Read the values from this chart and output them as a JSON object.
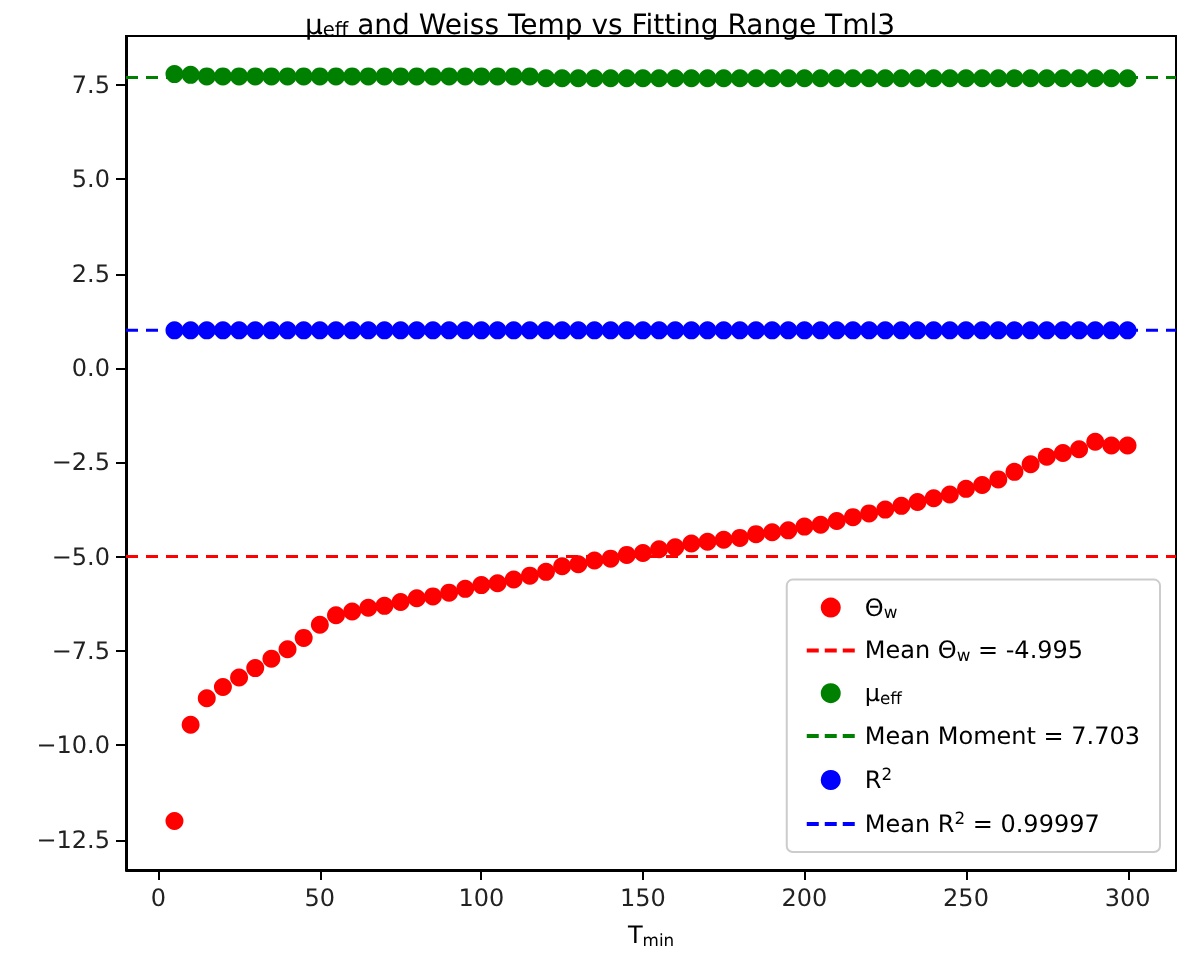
{
  "chart_data": {
    "type": "scatter",
    "title": "μ$_{eff}$ and Weiss Temp vs Fitting Range Tml3",
    "xlabel": "T$_{min}$",
    "x": [
      5,
      10,
      15,
      20,
      25,
      30,
      35,
      40,
      45,
      50,
      55,
      60,
      65,
      70,
      75,
      80,
      85,
      90,
      95,
      100,
      105,
      110,
      115,
      120,
      125,
      130,
      135,
      140,
      145,
      150,
      155,
      160,
      165,
      170,
      175,
      180,
      185,
      190,
      195,
      200,
      205,
      210,
      215,
      220,
      225,
      230,
      235,
      240,
      245,
      250,
      255,
      260,
      265,
      270,
      275,
      280,
      285,
      290,
      295,
      300
    ],
    "series": [
      {
        "name": "Θ$_{w}$",
        "color": "#ff0000",
        "values": [
          -12.0,
          -9.45,
          -8.75,
          -8.45,
          -8.2,
          -7.95,
          -7.7,
          -7.45,
          -7.15,
          -6.8,
          -6.55,
          -6.45,
          -6.35,
          -6.3,
          -6.2,
          -6.1,
          -6.05,
          -5.95,
          -5.85,
          -5.75,
          -5.7,
          -5.6,
          -5.5,
          -5.4,
          -5.25,
          -5.2,
          -5.1,
          -5.05,
          -4.95,
          -4.9,
          -4.8,
          -4.75,
          -4.65,
          -4.6,
          -4.55,
          -4.5,
          -4.4,
          -4.35,
          -4.3,
          -4.2,
          -4.15,
          -4.05,
          -3.95,
          -3.85,
          -3.75,
          -3.65,
          -3.55,
          -3.45,
          -3.35,
          -3.2,
          -3.1,
          -2.95,
          -2.75,
          -2.55,
          -2.35,
          -2.25,
          -2.15,
          -1.95,
          -2.05,
          -2.05
        ]
      },
      {
        "name": "μ$_{eff}$",
        "color": "#008000",
        "values": [
          7.79,
          7.77,
          7.73,
          7.73,
          7.73,
          7.73,
          7.73,
          7.73,
          7.73,
          7.73,
          7.73,
          7.73,
          7.73,
          7.73,
          7.73,
          7.73,
          7.73,
          7.73,
          7.73,
          7.73,
          7.73,
          7.73,
          7.73,
          7.68,
          7.68,
          7.68,
          7.68,
          7.68,
          7.68,
          7.68,
          7.68,
          7.68,
          7.68,
          7.68,
          7.68,
          7.68,
          7.68,
          7.68,
          7.68,
          7.68,
          7.68,
          7.68,
          7.68,
          7.68,
          7.68,
          7.68,
          7.68,
          7.68,
          7.68,
          7.68,
          7.68,
          7.68,
          7.68,
          7.68,
          7.68,
          7.68,
          7.68,
          7.68,
          7.68,
          7.68
        ]
      },
      {
        "name": "R$^{2}$",
        "color": "#0000ff",
        "values": [
          1.0,
          1.0,
          1.0,
          1.0,
          1.0,
          1.0,
          1.0,
          1.0,
          1.0,
          1.0,
          1.0,
          1.0,
          1.0,
          1.0,
          1.0,
          1.0,
          1.0,
          1.0,
          1.0,
          1.0,
          1.0,
          1.0,
          1.0,
          1.0,
          1.0,
          1.0,
          1.0,
          1.0,
          1.0,
          1.0,
          1.0,
          1.0,
          1.0,
          1.0,
          1.0,
          1.0,
          1.0,
          1.0,
          1.0,
          1.0,
          1.0,
          1.0,
          1.0,
          1.0,
          1.0,
          1.0,
          1.0,
          1.0,
          1.0,
          1.0,
          1.0,
          1.0,
          1.0,
          1.0,
          1.0,
          1.0,
          1.0,
          1.0,
          1.0,
          1.0
        ]
      }
    ],
    "ref_lines": [
      {
        "axis": "y",
        "value": -4.995,
        "label": "Mean Θ$_{w}$ = -4.995",
        "color": "#ff0000",
        "line_style": "dashed"
      },
      {
        "axis": "y",
        "value": 7.703,
        "label": "Mean Moment = 7.703",
        "color": "#008000",
        "line_style": "dashed"
      },
      {
        "axis": "y",
        "value": 0.99997,
        "label": "Mean R$^{2}$ = 0.99997",
        "color": "#0000ff",
        "line_style": "dashed"
      }
    ],
    "xlim": [
      -10,
      315
    ],
    "ylim": [
      -13.3,
      8.8
    ],
    "xticks": [
      0,
      50,
      100,
      150,
      200,
      250,
      300
    ],
    "yticks": [
      {
        "value": -12.5,
        "label": "−12.5"
      },
      {
        "value": -10,
        "label": "−10.0"
      },
      {
        "value": -7.5,
        "label": "−7.5"
      },
      {
        "value": -5,
        "label": "−5.0"
      },
      {
        "value": -2.5,
        "label": "−2.5"
      },
      {
        "value": 0,
        "label": "0.0"
      },
      {
        "value": 2.5,
        "label": "2.5"
      },
      {
        "value": 5,
        "label": "5.0"
      },
      {
        "value": 7.5,
        "label": "7.5"
      }
    ],
    "marker": "circle",
    "grid": false,
    "legend": "bottom right"
  }
}
